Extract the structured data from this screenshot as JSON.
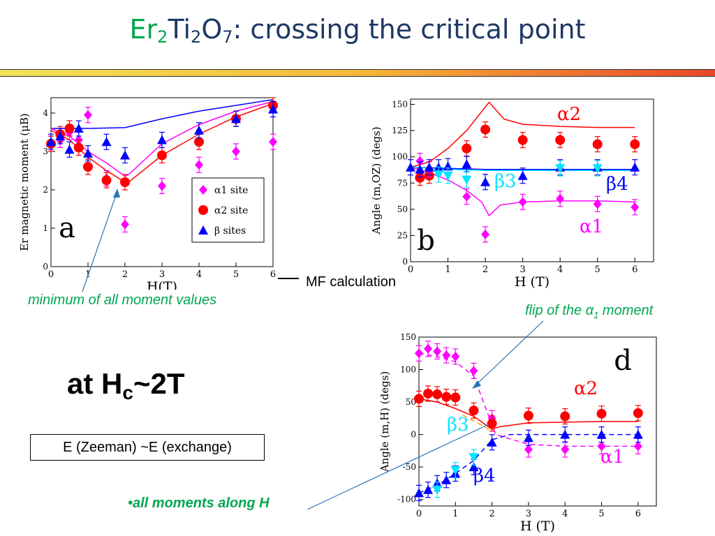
{
  "slide": {
    "title_part1": "Er",
    "title_sub1": "2",
    "title_part2": "Ti",
    "title_sub2": "2",
    "title_part3": "O",
    "title_sub3": "7",
    "title_part4": ": crossing the critical point",
    "colors": {
      "title": "#1f3864",
      "accent_green": "#00a651",
      "alpha1": "#ff00ff",
      "alpha2": "#ff0000",
      "beta": "#0000ff",
      "beta3": "#00e5ff"
    },
    "mf_label": "MF calculation",
    "annotation_min": "minimum of  all moment values",
    "annotation_flip": "flip of the α",
    "annotation_flip_sub": "1",
    "annotation_flip_end": " moment",
    "hc_text1": "at H",
    "hc_sub": "c",
    "hc_text2": "~2T",
    "box_text": "E (Zeeman) ~E (exchange)",
    "bullet_text": "•all moments along H"
  },
  "chart_data": [
    {
      "type": "scatter",
      "panel": "a",
      "xlabel": "H(T)",
      "ylabel": "Er magnetic moment (μB)",
      "xlim": [
        0,
        6
      ],
      "ylim": [
        0,
        4.4
      ],
      "xticks": [
        "0",
        "1",
        "2",
        "3",
        "4",
        "5",
        "6"
      ],
      "yticks": [
        "0",
        "1",
        "2",
        "3",
        "4"
      ],
      "legend": [
        "α1 site",
        "α2 site",
        "β sites"
      ],
      "legend_position": "bottom-right",
      "series": [
        {
          "name": "α1 site",
          "marker": "diamond",
          "color": "#ff00ff",
          "x": [
            0,
            0.25,
            0.5,
            0.75,
            1,
            1.5,
            2,
            3,
            4,
            5,
            6
          ],
          "y": [
            3.2,
            3.3,
            3.5,
            3.3,
            3.95,
            2.3,
            1.1,
            2.1,
            2.65,
            3.0,
            3.25
          ]
        },
        {
          "name": "α2 site",
          "marker": "circle",
          "color": "#ff0000",
          "x": [
            0,
            0.25,
            0.5,
            0.75,
            1,
            1.5,
            2,
            3,
            4,
            5,
            6
          ],
          "y": [
            3.2,
            3.45,
            3.6,
            3.1,
            2.6,
            2.25,
            2.2,
            2.9,
            3.25,
            3.85,
            4.2
          ]
        },
        {
          "name": "β sites",
          "marker": "triangle",
          "color": "#0000ff",
          "x": [
            0,
            0.25,
            0.5,
            0.75,
            1,
            1.5,
            2,
            3,
            4,
            5,
            6
          ],
          "y": [
            3.25,
            3.4,
            3.05,
            3.6,
            2.95,
            3.25,
            2.9,
            3.3,
            3.55,
            3.85,
            4.1
          ]
        }
      ],
      "lines": [
        {
          "color": "#0000ff",
          "x": [
            0,
            0.5,
            1,
            2,
            3,
            4,
            5,
            6
          ],
          "y": [
            3.6,
            3.6,
            3.6,
            3.62,
            3.85,
            4.05,
            4.2,
            4.35
          ]
        },
        {
          "color": "#ff00ff",
          "x": [
            0,
            0.5,
            1,
            1.5,
            2,
            2.1,
            3,
            4,
            5,
            6
          ],
          "y": [
            3.6,
            3.4,
            3.0,
            2.7,
            2.35,
            2.4,
            3.2,
            3.7,
            4.05,
            4.3
          ]
        },
        {
          "color": "#ff0000",
          "x": [
            0,
            0.5,
            1,
            1.5,
            2,
            2.1,
            3,
            4,
            5,
            6
          ],
          "y": [
            3.55,
            3.3,
            2.85,
            2.5,
            2.2,
            2.2,
            2.9,
            3.45,
            3.9,
            4.25
          ]
        }
      ]
    },
    {
      "type": "scatter",
      "panel": "b",
      "xlabel": "H (T)",
      "ylabel": "Angle (m,OZ) (degs)",
      "xlim": [
        0,
        6.5
      ],
      "ylim": [
        0,
        155
      ],
      "xticks": [
        "0",
        "1",
        "2",
        "3",
        "4",
        "5",
        "6"
      ],
      "yticks": [
        "0",
        "25",
        "50",
        "75",
        "100",
        "125",
        "150"
      ],
      "curve_labels": [
        "α2",
        "β4",
        "β3",
        "α1"
      ],
      "series": [
        {
          "name": "α2",
          "marker": "circle",
          "color": "#ff0000",
          "x": [
            0.25,
            0.5,
            1.5,
            2,
            3,
            4,
            5,
            6
          ],
          "y": [
            80,
            82,
            108,
            126,
            116,
            116,
            112,
            112
          ]
        },
        {
          "name": "α1",
          "marker": "diamond",
          "color": "#ff00ff",
          "x": [
            0.25,
            0.5,
            1.5,
            2,
            3,
            4,
            5,
            6
          ],
          "y": [
            96,
            88,
            62,
            26,
            57,
            60,
            55,
            52
          ]
        },
        {
          "name": "β4",
          "marker": "triangle",
          "color": "#0000ff",
          "x": [
            0,
            0.25,
            0.5,
            0.75,
            1,
            1.5,
            2,
            3,
            4,
            5,
            6
          ],
          "y": [
            90,
            88,
            90,
            90,
            91,
            93,
            76,
            82,
            90,
            90,
            90
          ]
        },
        {
          "name": "β3",
          "marker": "triangle-down",
          "color": "#00e5ff",
          "x": [
            0.75,
            1,
            1.5,
            4,
            5
          ],
          "y": [
            83,
            82,
            78,
            89,
            89
          ]
        }
      ],
      "lines": [
        {
          "color": "#ff0000",
          "x": [
            0,
            0.5,
            1,
            1.5,
            1.9,
            2.1,
            2.5,
            3,
            4,
            5,
            6
          ],
          "y": [
            90,
            95,
            108,
            125,
            143,
            152,
            136,
            131,
            129,
            128,
            128
          ]
        },
        {
          "color": "#ff00ff",
          "x": [
            0,
            0.5,
            1,
            1.5,
            1.9,
            2.1,
            2.4,
            3,
            4,
            5,
            6
          ],
          "y": [
            90,
            85,
            78,
            68,
            57,
            44,
            54,
            57,
            58,
            58,
            57
          ]
        },
        {
          "color": "#0000ff",
          "x": [
            0,
            1,
            2,
            3,
            4,
            5,
            6
          ],
          "y": [
            90,
            89,
            88,
            88,
            88,
            88,
            88
          ]
        },
        {
          "color": "#00e5ff",
          "x": [
            0,
            1,
            2,
            3,
            4,
            5,
            6
          ],
          "y": [
            90,
            88,
            87,
            87,
            87,
            87,
            87
          ]
        }
      ]
    },
    {
      "type": "scatter",
      "panel": "d",
      "xlabel": "H (T)",
      "ylabel": "Angle (m,H) (degs)",
      "xlim": [
        0,
        6.5
      ],
      "ylim": [
        -110,
        150
      ],
      "xticks": [
        "0",
        "1",
        "2",
        "3",
        "4",
        "5",
        "6"
      ],
      "yticks": [
        "-100",
        "-50",
        "0",
        "50",
        "100",
        "150"
      ],
      "curve_labels": [
        "α2",
        "β3",
        "α1",
        "β4"
      ],
      "series": [
        {
          "name": "α1",
          "marker": "diamond",
          "color": "#ff00ff",
          "x": [
            0,
            0.25,
            0.5,
            0.75,
            1,
            1.5,
            2,
            3,
            4,
            5,
            6
          ],
          "y": [
            125,
            132,
            128,
            122,
            120,
            98,
            25,
            -23,
            -23,
            -18,
            -18
          ]
        },
        {
          "name": "α2",
          "marker": "circle",
          "color": "#ff0000",
          "x": [
            0,
            0.25,
            0.5,
            0.75,
            1,
            1.5,
            2,
            3,
            4,
            5,
            6
          ],
          "y": [
            55,
            63,
            62,
            58,
            57,
            37,
            17,
            29,
            28,
            32,
            33
          ]
        },
        {
          "name": "β4",
          "marker": "triangle",
          "color": "#0000ff",
          "x": [
            0,
            0.25,
            0.5,
            0.75,
            1,
            1.5,
            2,
            3,
            4,
            5,
            6
          ],
          "y": [
            -90,
            -85,
            -75,
            -70,
            -60,
            -50,
            -12,
            -5,
            0,
            0,
            0
          ]
        },
        {
          "name": "β3",
          "marker": "triangle-down",
          "color": "#00e5ff",
          "x": [
            0.5,
            1,
            1.5
          ],
          "y": [
            -85,
            -55,
            -35
          ]
        }
      ],
      "lines": [
        {
          "color": "#ff00ff",
          "dashed": true,
          "x": [
            0,
            0.5,
            1,
            1.5,
            1.9,
            2.1,
            3,
            4,
            5,
            6
          ],
          "y": [
            125,
            120,
            112,
            90,
            30,
            0,
            -15,
            -18,
            -18,
            -18
          ]
        },
        {
          "color": "#ff0000",
          "x": [
            0,
            0.5,
            1,
            1.5,
            2,
            2.2,
            3,
            4,
            5,
            6
          ],
          "y": [
            55,
            50,
            40,
            28,
            8,
            12,
            18,
            19,
            20,
            20
          ]
        },
        {
          "color": "#ff9900",
          "dashed": true,
          "x": [
            1.2,
            1.6,
            2
          ],
          "y": [
            30,
            18,
            5
          ]
        },
        {
          "color": "#0000ff",
          "dashed": true,
          "x": [
            0,
            0.5,
            1,
            1.5,
            2,
            2.5,
            3,
            4,
            5,
            6
          ],
          "y": [
            -90,
            -78,
            -60,
            -40,
            -8,
            0,
            0,
            0,
            0,
            0
          ]
        }
      ]
    }
  ]
}
